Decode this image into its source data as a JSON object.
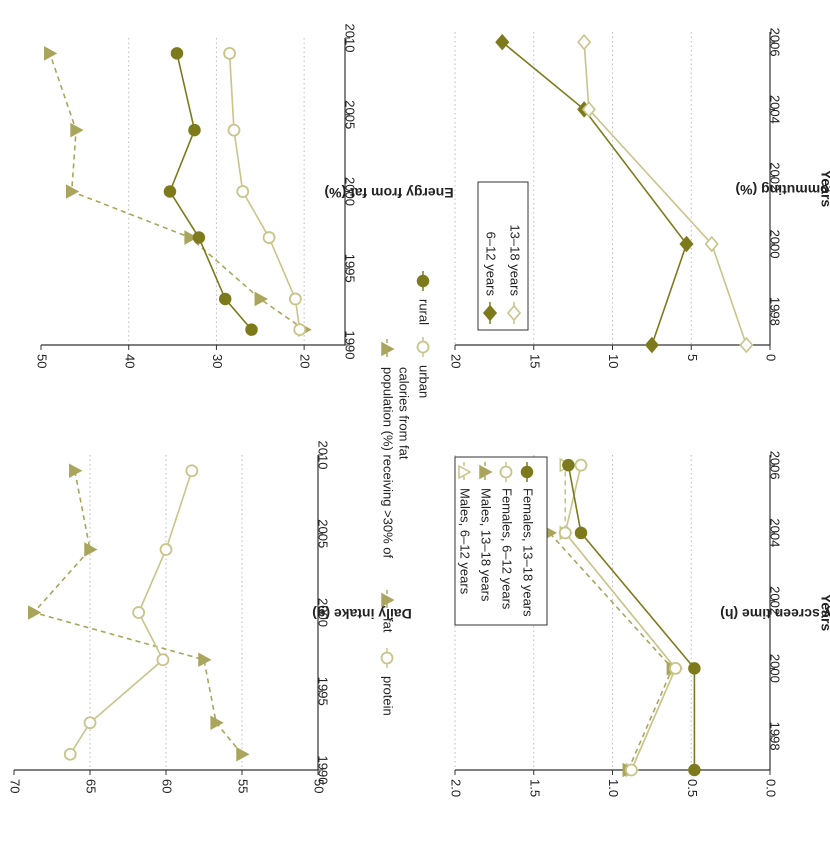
{
  "colors": {
    "light": "#c8c48a",
    "dark": "#7d7a1c",
    "mid": "#aaa55c",
    "grid": "#bbbbbb",
    "axis": "#333333"
  },
  "chart_data": [
    {
      "type": "line",
      "panel": "top-left",
      "ylabel": "Daily intake (g)",
      "xlim": [
        1990,
        2010
      ],
      "xticks": [
        "1990",
        "1995",
        "2000",
        "2005",
        "2010"
      ],
      "ylim": [
        50,
        70
      ],
      "yticks": [
        "50",
        "55",
        "60",
        "65",
        "70"
      ],
      "grid": "dotted horizontal",
      "series": [
        {
          "name": "fat",
          "style": "dashed-triangle",
          "color": "mid",
          "x": [
            1991,
            1993,
            1997,
            2000,
            2004,
            2009
          ],
          "y": [
            55,
            56.7,
            57.5,
            68.7,
            65,
            66
          ]
        },
        {
          "name": "protein",
          "style": "solid-open-circle",
          "color": "light",
          "x": [
            1991,
            1993,
            1997,
            2000,
            2004,
            2009
          ],
          "y": [
            66.3,
            65,
            60.2,
            61.8,
            60,
            58.3
          ]
        }
      ],
      "legend": {
        "items": [
          "fat",
          "protein"
        ]
      }
    },
    {
      "type": "line",
      "panel": "top-right",
      "ylabel": "Energy from fat (%)",
      "xlim": [
        1990,
        2010
      ],
      "xticks": [
        "1990",
        "1995",
        "2000",
        "2005",
        "2010"
      ],
      "ylim": [
        15,
        50
      ],
      "yticks": [
        "20",
        "30",
        "40",
        "50"
      ],
      "grid": "dotted horizontal",
      "series": [
        {
          "name": "population (%) receiving >30% of calories from fat",
          "style": "dashed-triangle",
          "color": "mid",
          "x": [
            1991,
            1993,
            1997,
            2000,
            2004,
            2009
          ],
          "y": [
            20,
            25,
            33,
            46.5,
            46,
            49
          ]
        },
        {
          "name": "urban",
          "style": "solid-open-circle",
          "color": "light",
          "x": [
            1991,
            1993,
            1997,
            2000,
            2004,
            2009
          ],
          "y": [
            20.5,
            21,
            24,
            27,
            28,
            28.5
          ]
        },
        {
          "name": "rural",
          "style": "solid-filled-circle",
          "color": "dark",
          "x": [
            1991,
            1993,
            1997,
            2000,
            2004,
            2009
          ],
          "y": [
            26,
            29,
            32,
            35.3,
            32.5,
            34.5
          ]
        }
      ],
      "legend": {
        "items": [
          "population (%) receiving >30% of",
          "calories from fat",
          "urban",
          "rural"
        ]
      }
    },
    {
      "type": "line",
      "panel": "bottom-left",
      "xlabel": "Years",
      "ylabel": "Median daily screen time (h)",
      "xlim": [
        1997,
        2006.3
      ],
      "xticks": [
        "1998",
        "2000",
        "2002",
        "2004",
        "2006"
      ],
      "ylim": [
        0,
        2
      ],
      "yticks": [
        "0.0",
        "0.5",
        "1.0",
        "1.5",
        "2.0"
      ],
      "grid": "dotted horizontal",
      "series": [
        {
          "name": "Males, 6–12 years",
          "style": "dashed-open-triangle",
          "color": "light",
          "x": [
            1997,
            2000,
            2004,
            2006
          ],
          "y": [
            0.88,
            0.6,
            1.3,
            1.3
          ]
        },
        {
          "name": "Males, 13–18 years",
          "style": "dashed-triangle",
          "color": "mid",
          "x": [
            1997,
            2000,
            2004,
            2006
          ],
          "y": [
            0.9,
            0.62,
            1.4,
            1.7
          ]
        },
        {
          "name": "Females, 6–12 years",
          "style": "solid-open-circle",
          "color": "light",
          "x": [
            1997,
            2000,
            2004,
            2006
          ],
          "y": [
            0.88,
            0.6,
            1.3,
            1.2
          ]
        },
        {
          "name": "Females, 13–18 years",
          "style": "solid-filled-circle",
          "color": "dark",
          "x": [
            1997,
            2000,
            2004,
            2006
          ],
          "y": [
            0.48,
            0.48,
            1.2,
            1.28
          ]
        }
      ],
      "legend": {
        "items": [
          "Males, 6–12 years",
          "Males, 13–18 years",
          "Females, 6–12 years",
          "Females, 13–18 years"
        ]
      }
    },
    {
      "type": "line",
      "panel": "bottom-right",
      "xlabel": "Years",
      "ylabel": "Passive commuting (%)",
      "xlim": [
        1997,
        2006.3
      ],
      "xticks": [
        "1998",
        "2000",
        "2002",
        "2004",
        "2006"
      ],
      "ylim": [
        0,
        20
      ],
      "yticks": [
        "0",
        "5",
        "10",
        "15",
        "20"
      ],
      "grid": "dotted horizontal",
      "series": [
        {
          "name": "6–12 years",
          "style": "solid-filled-diamond",
          "color": "dark",
          "x": [
            1997,
            2000,
            2004,
            2006
          ],
          "y": [
            7.5,
            5.3,
            11.8,
            17
          ]
        },
        {
          "name": "13–18 years",
          "style": "solid-open-diamond",
          "color": "light",
          "x": [
            1997,
            2000,
            2004,
            2006
          ],
          "y": [
            1.5,
            3.7,
            11.5,
            11.8
          ]
        }
      ],
      "legend": {
        "items": [
          "6–12 years",
          "13–18 years"
        ]
      }
    }
  ]
}
